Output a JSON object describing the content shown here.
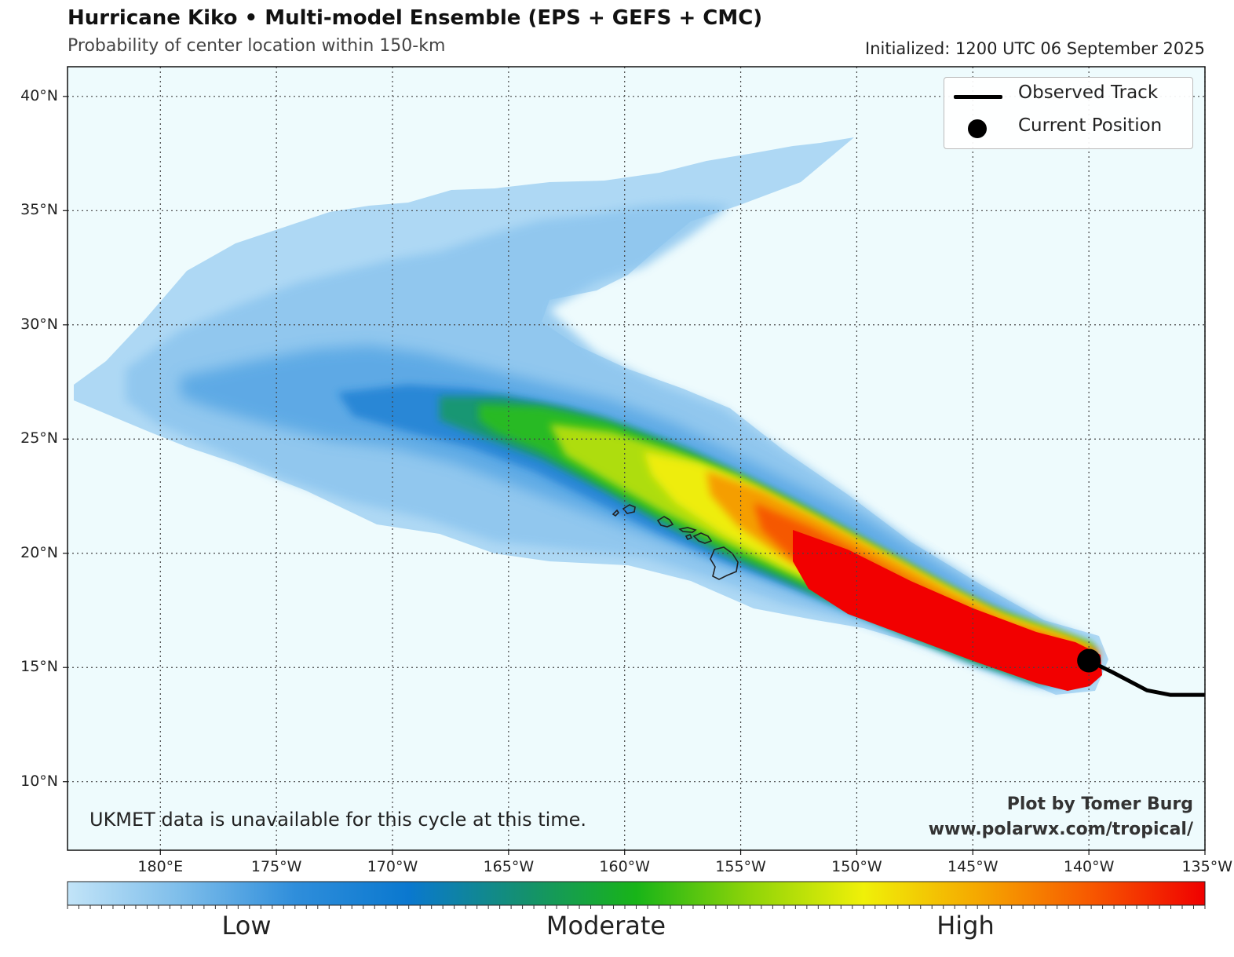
{
  "header": {
    "title": "Hurricane Kiko • Multi-model Ensemble (EPS + GEFS + CMC)",
    "subtitle": "Probability of center location within 150-km",
    "initialized": "Initialized: 1200 UTC 06 September 2025"
  },
  "map": {
    "lon_range": [
      -184,
      -135
    ],
    "lat_range": [
      7,
      41.3
    ],
    "lat_ticks": [
      {
        "value": 40,
        "label": "40°N"
      },
      {
        "value": 35,
        "label": "35°N"
      },
      {
        "value": 30,
        "label": "30°N"
      },
      {
        "value": 25,
        "label": "25°N"
      },
      {
        "value": 20,
        "label": "20°N"
      },
      {
        "value": 15,
        "label": "15°N"
      },
      {
        "value": 10,
        "label": "10°N"
      }
    ],
    "lon_ticks": [
      {
        "value": -180,
        "label": "180°E"
      },
      {
        "value": -175,
        "label": "175°W"
      },
      {
        "value": -170,
        "label": "170°W"
      },
      {
        "value": -165,
        "label": "165°W"
      },
      {
        "value": -160,
        "label": "160°W"
      },
      {
        "value": -155,
        "label": "155°W"
      },
      {
        "value": -150,
        "label": "150°W"
      },
      {
        "value": -145,
        "label": "145°W"
      },
      {
        "value": -140,
        "label": "140°W"
      },
      {
        "value": -135,
        "label": "135°W"
      }
    ],
    "observed_track": [
      [
        -135,
        13.8
      ],
      [
        -136.5,
        13.8
      ],
      [
        -137.5,
        14.0
      ],
      [
        -139.0,
        14.8
      ],
      [
        -140.0,
        15.3
      ]
    ],
    "current_position": [
      -140.0,
      15.3
    ],
    "probability_core_path": [
      [
        -140.0,
        15.3
      ],
      [
        -145.0,
        17.3
      ],
      [
        -150.0,
        19.8
      ],
      [
        -154.0,
        22.0
      ],
      [
        -157.5,
        24.0
      ],
      [
        -162.0,
        25.5
      ]
    ],
    "probability_spread_note_levels": [
      "low",
      "moderate",
      "high"
    ]
  },
  "legend": {
    "observed_track": "Observed Track",
    "current_position": "Current Position"
  },
  "annotations": {
    "ukmet_note": "UKMET data is unavailable for this cycle at this time.",
    "credit_author": "Plot by Tomer Burg",
    "credit_url": "www.polarwx.com/tropical/"
  },
  "colorbar": {
    "labels": {
      "low": "Low",
      "moderate": "Moderate",
      "high": "High"
    },
    "stops": [
      "#c2e4f8",
      "#7dbdea",
      "#2f8edb",
      "#0a78cf",
      "#149070",
      "#18b418",
      "#8fd408",
      "#f0f008",
      "#f5a800",
      "#f75800",
      "#f00000"
    ]
  },
  "colors": {
    "ocean": "#eefbfd",
    "grid": "#444444",
    "track": "#000000"
  }
}
